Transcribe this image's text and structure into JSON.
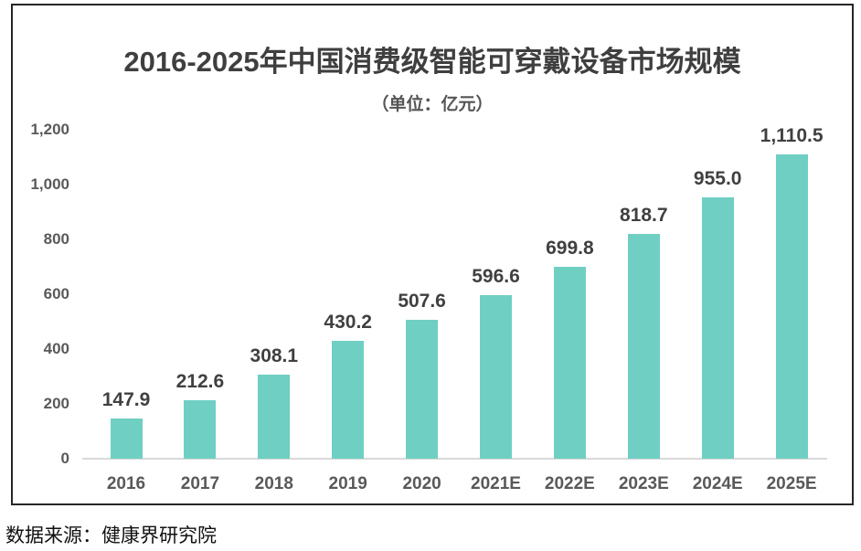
{
  "chart_data": {
    "type": "bar",
    "title": "2016-2025年中国消费级智能可穿戴设备市场规模",
    "subtitle": "（单位：亿元）",
    "categories": [
      "2016",
      "2017",
      "2018",
      "2019",
      "2020",
      "2021E",
      "2022E",
      "2023E",
      "2024E",
      "2025E"
    ],
    "values": [
      147.9,
      212.6,
      308.1,
      430.2,
      507.6,
      596.6,
      699.8,
      818.7,
      955.0,
      1110.5
    ],
    "data_labels": [
      "147.9",
      "212.6",
      "308.1",
      "430.2",
      "507.6",
      "596.6",
      "699.8",
      "818.7",
      "955.0",
      "1,110.5"
    ],
    "xlabel": "",
    "ylabel": "",
    "ylim": [
      0,
      1200
    ],
    "y_ticks": {
      "labels": [
        "0",
        "200",
        "400",
        "600",
        "800",
        "1,000",
        "1,200"
      ],
      "values": [
        0,
        200,
        400,
        600,
        800,
        1000,
        1200
      ]
    },
    "grid": false,
    "legend": "none"
  },
  "colors": {
    "bar": "#6FCFC3",
    "title_text": "#3F3F3F",
    "data_label": "#404040",
    "axis_label": "#595959",
    "baseline": "#D9D9D9",
    "frame_border": "#262626",
    "source_text": "#111111",
    "background": "#FFFFFF"
  },
  "source": {
    "text": "数据来源：健康界研究院"
  }
}
